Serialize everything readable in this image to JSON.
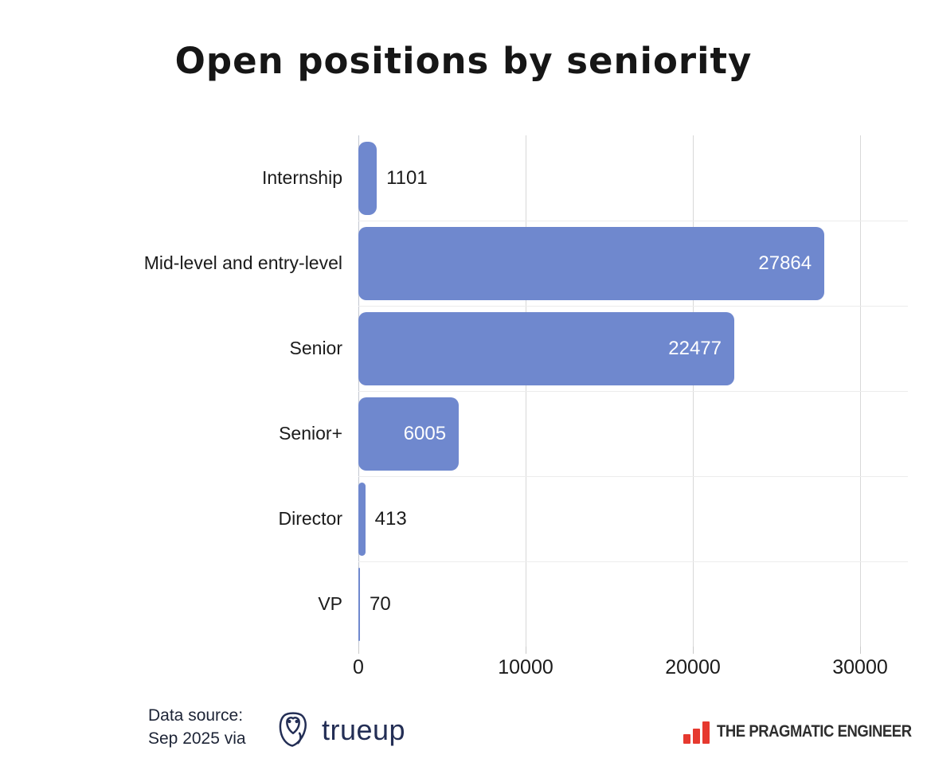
{
  "title": "Open positions by seniority",
  "chart_data": {
    "type": "bar",
    "orientation": "horizontal",
    "title": "Open positions by seniority",
    "categories": [
      "Internship",
      "Mid-level and entry-level",
      "Senior",
      "Senior+",
      "Director",
      "VP"
    ],
    "values": [
      1101,
      27864,
      22477,
      6005,
      413,
      70
    ],
    "xlim": [
      0,
      30000
    ],
    "x_ticks": [
      0,
      10000,
      20000,
      30000
    ],
    "grid": "vertical-and-row-separators",
    "legend": "none",
    "bar_color": "#6F88CE",
    "value_label_inside_color": "#FFFFFF",
    "value_label_outside_color": "#1B1B1B"
  },
  "footer": {
    "source_line1": "Data source:",
    "source_line2": "Sep 2025 via",
    "trueup": {
      "label": "trueup",
      "icon": "owl-icon",
      "color": "#232E55"
    },
    "pragmatic": {
      "label": "THE PRAGMATIC ENGINEER",
      "icon": "bar-chart-icon",
      "accent": "#E6392F",
      "text_color": "#2E2E2E"
    }
  }
}
